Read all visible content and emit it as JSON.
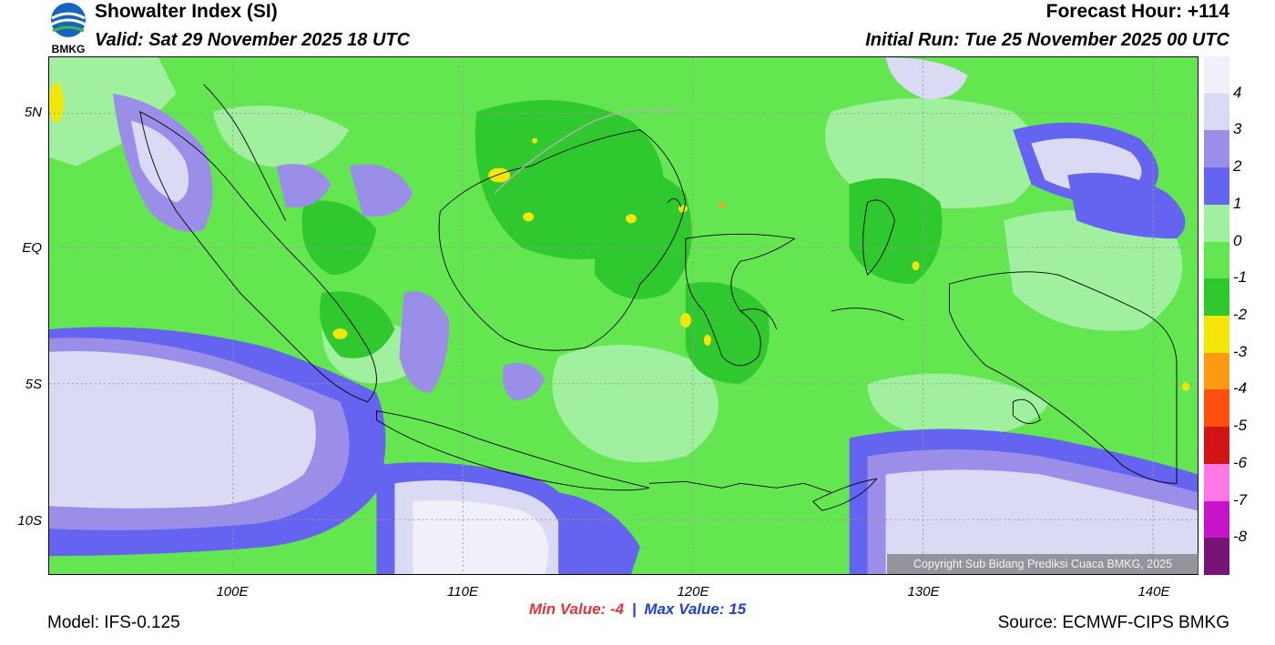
{
  "header": {
    "logo_text": "BMKG",
    "title": "Showalter Index (SI)",
    "valid": "Valid: Sat 29 November 2025 18 UTC",
    "forecast_hour": "Forecast Hour: +114",
    "initial_run": "Initial Run: Tue 25 November 2025 00 UTC"
  },
  "map": {
    "lat_labels": [
      "5N",
      "EQ",
      "5S",
      "10S"
    ],
    "lon_labels": [
      "100E",
      "110E",
      "120E",
      "130E",
      "140E"
    ],
    "copyright": "Copyright Sub Bidang Prediksi Cuaca BMKG, 2025"
  },
  "legend": {
    "labels": [
      "4",
      "3",
      "2",
      "1",
      "0",
      "-1",
      "-2",
      "-3",
      "-4",
      "-5",
      "-6",
      "-7",
      "-8"
    ],
    "colors": [
      "#f0f0fa",
      "#dadaf5",
      "#9b8ee8",
      "#6464f0",
      "#a0f0a0",
      "#64e650",
      "#2fc82f",
      "#f4e60a",
      "#ff9a14",
      "#ff5010",
      "#d21414",
      "#ff78e6",
      "#c814c8",
      "#781478"
    ]
  },
  "footer": {
    "min_label": "Min Value:",
    "min_value": "-4",
    "separator": "|",
    "max_label": "Max Value:",
    "max_value": "15",
    "model": "Model: IFS-0.125",
    "source": "Source: ECMWF-CIPS BMKG"
  }
}
